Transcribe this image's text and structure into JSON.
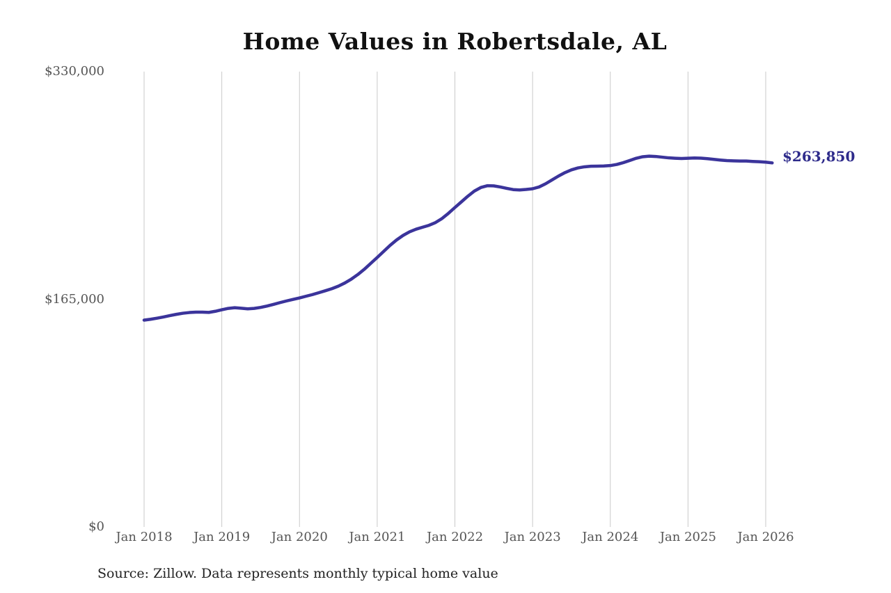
{
  "source_note": "Source: Zillow. Data represents monthly typical home value",
  "chart_data": {
    "type": "line",
    "title": "Home Values in Robertsdale, AL",
    "xlabel": "",
    "ylabel": "",
    "ylim": [
      0,
      330000
    ],
    "grid": "vertical-only",
    "legend": "none",
    "latest_value_label": "$263,850",
    "y_tick_values": [
      0,
      165000,
      330000
    ],
    "y_tick_labels": [
      "$0",
      "$165,000",
      "$330,000"
    ],
    "x_tick_labels": [
      "Jan 2018",
      "Jan 2019",
      "Jan 2020",
      "Jan 2021",
      "Jan 2022",
      "Jan 2023",
      "Jan 2024",
      "Jan 2025",
      "Jan 2026"
    ],
    "series": [
      {
        "name": "Monthly typical home value",
        "start": "Jan 2018",
        "end": "Feb 2026",
        "frequency": "monthly",
        "values": [
          149900,
          150500,
          151300,
          152200,
          153200,
          154100,
          154900,
          155400,
          155700,
          155700,
          155500,
          156300,
          157400,
          158400,
          158900,
          158500,
          158100,
          158400,
          159100,
          160100,
          161300,
          162600,
          163800,
          164900,
          166000,
          167200,
          168400,
          169800,
          171200,
          172700,
          174500,
          176800,
          179600,
          182900,
          186700,
          191000,
          195300,
          199700,
          204100,
          208000,
          211300,
          213900,
          215800,
          217200,
          218600,
          220600,
          223500,
          227300,
          231500,
          235600,
          239700,
          243400,
          246000,
          247300,
          247200,
          246400,
          245400,
          244500,
          244200,
          244600,
          245100,
          246400,
          248700,
          251500,
          254300,
          256800,
          258800,
          260200,
          261000,
          261400,
          261500,
          261600,
          261900,
          262700,
          264000,
          265600,
          267200,
          268300,
          268700,
          268500,
          268000,
          267500,
          267200,
          267000,
          267200,
          267400,
          267300,
          266900,
          266400,
          265900,
          265500,
          265300,
          265200,
          265200,
          264900,
          264700,
          264400,
          263850
        ]
      }
    ],
    "colors": {
      "line": "#3b349b",
      "latest_label": "#2e2b8b",
      "gridline": "#c9c9c9",
      "axis_text": "#555555",
      "title": "#111111",
      "source": "#222222",
      "background": "#ffffff"
    }
  }
}
